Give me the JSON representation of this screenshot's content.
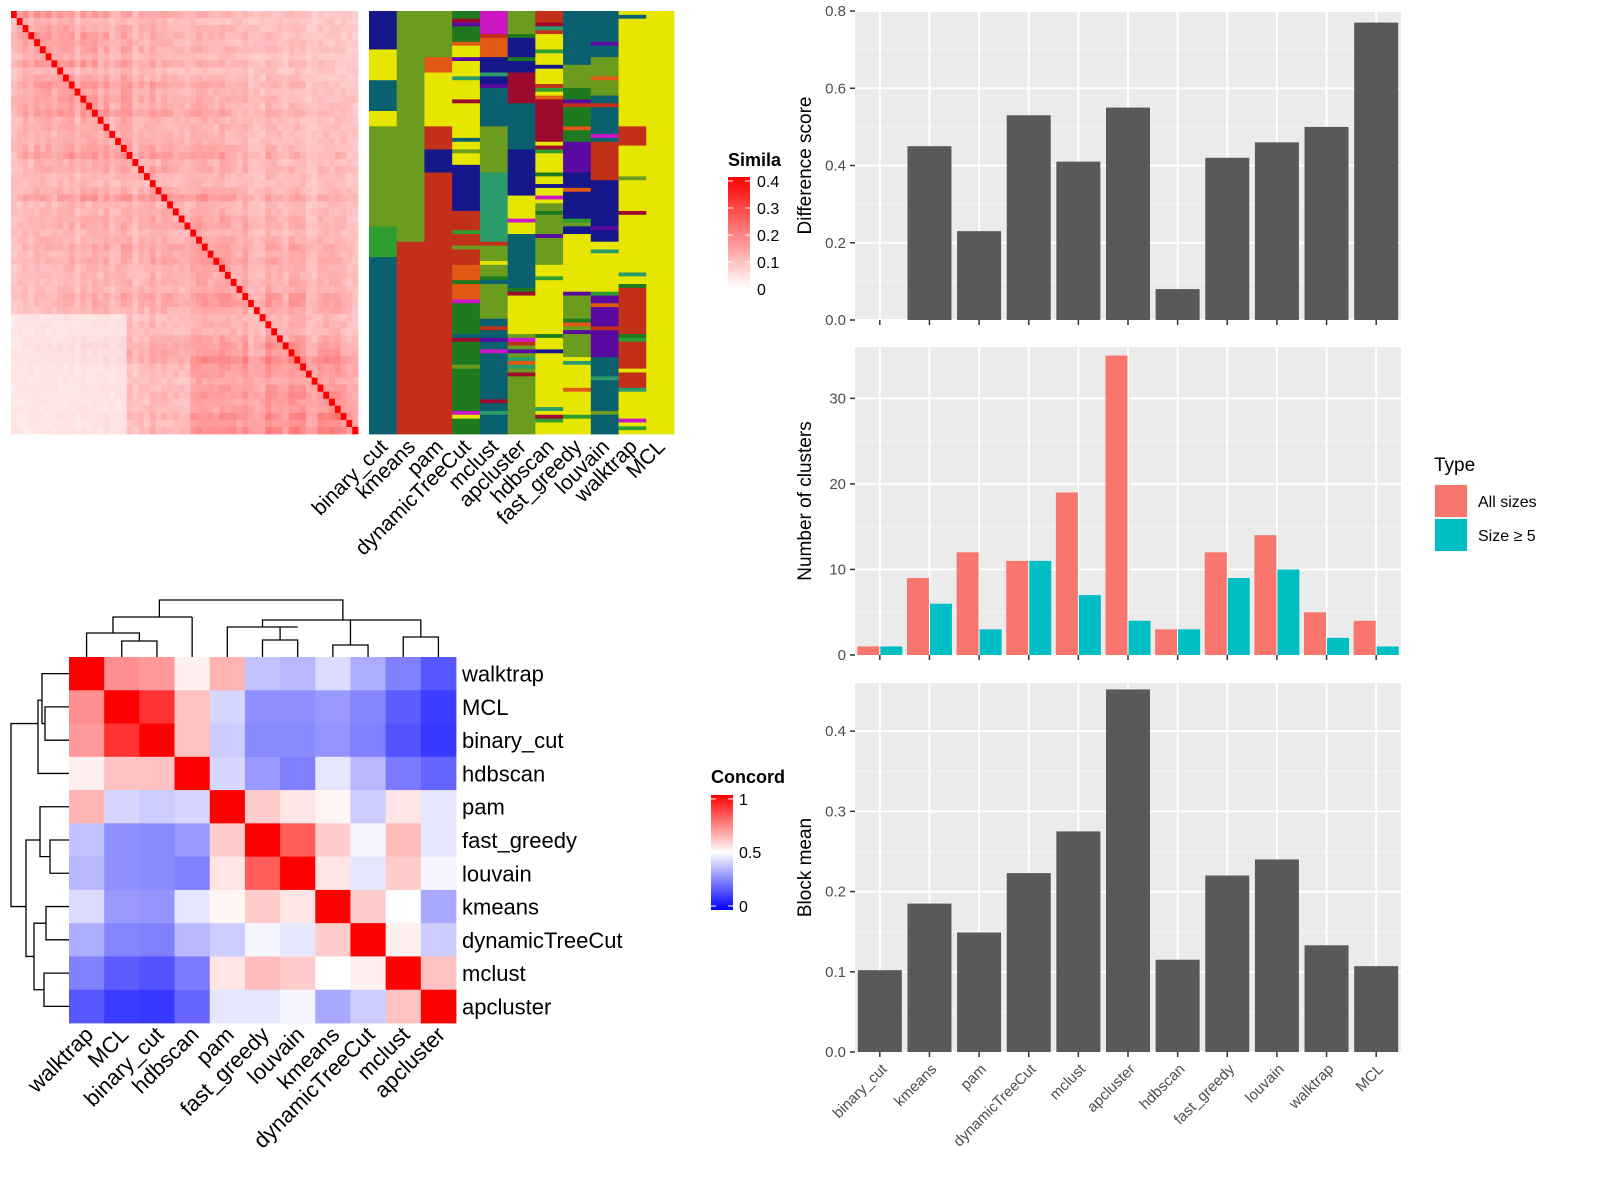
{
  "chart_data": [
    {
      "type": "heatmap",
      "panel": "cell-similarity",
      "legend": {
        "title": "Simila",
        "ticks": [
          "0.4",
          "0.3",
          "0.2",
          "0.1",
          "0"
        ],
        "colors": [
          "#ffffff",
          "#ff0000"
        ]
      },
      "diagonal_color": "#ff0000"
    },
    {
      "type": "heatmap",
      "panel": "cluster-assignments",
      "methods": [
        "binary_cut",
        "kmeans",
        "pam",
        "dynamicTreeCut",
        "mclust",
        "apcluster",
        "hdbscan",
        "fast_greedy",
        "louvain",
        "walktrap",
        "MCL"
      ],
      "palette": [
        "#e6e600",
        "#1f7a1f",
        "#6b9c1f",
        "#0b6070",
        "#c2301a",
        "#15178a",
        "#cc16c4",
        "#e05a14",
        "#9c0a2e",
        "#2a9c6b",
        "#5a0aa0",
        "#2e9e2e"
      ]
    },
    {
      "type": "bar",
      "panel": "difference-score",
      "categories": [
        "binary_cut",
        "kmeans",
        "pam",
        "dynamicTreeCut",
        "mclust",
        "apcluster",
        "hdbscan",
        "fast_greedy",
        "louvain",
        "walktrap",
        "MCL"
      ],
      "values": [
        0,
        0.45,
        0.23,
        0.53,
        0.41,
        0.55,
        0.08,
        0.42,
        0.46,
        0.5,
        0.77
      ],
      "ylabel": "Difference score",
      "ylim": [
        0,
        0.8
      ],
      "yticks": [
        "0.0",
        "0.2",
        "0.4",
        "0.6",
        "0.8"
      ],
      "bar_color": "#595959"
    },
    {
      "type": "bar",
      "panel": "number-of-clusters",
      "categories": [
        "binary_cut",
        "kmeans",
        "pam",
        "dynamicTreeCut",
        "mclust",
        "apcluster",
        "hdbscan",
        "fast_greedy",
        "louvain",
        "walktrap",
        "MCL"
      ],
      "series": [
        {
          "name": "All sizes",
          "values": [
            1,
            9,
            12,
            11,
            19,
            35,
            3,
            12,
            14,
            5,
            4
          ],
          "color": "#f8766d"
        },
        {
          "name": "Size ≥ 5",
          "values": [
            1,
            6,
            3,
            11,
            7,
            4,
            3,
            9,
            10,
            2,
            1
          ],
          "color": "#00bfc4"
        }
      ],
      "ylabel": "Number of clusters",
      "ylim": [
        0,
        36
      ],
      "yticks": [
        "0",
        "10",
        "20",
        "30"
      ],
      "legend": {
        "title": "Type",
        "position": "right"
      }
    },
    {
      "type": "bar",
      "panel": "block-mean",
      "categories": [
        "binary_cut",
        "kmeans",
        "pam",
        "dynamicTreeCut",
        "mclust",
        "apcluster",
        "hdbscan",
        "fast_greedy",
        "louvain",
        "walktrap",
        "MCL"
      ],
      "values": [
        0.102,
        0.185,
        0.149,
        0.223,
        0.275,
        0.452,
        0.115,
        0.22,
        0.24,
        0.133,
        0.107
      ],
      "ylabel": "Block mean",
      "ylim": [
        0,
        0.46
      ],
      "yticks": [
        "0.0",
        "0.1",
        "0.2",
        "0.3",
        "0.4"
      ],
      "bar_color": "#595959"
    },
    {
      "type": "heatmap",
      "panel": "concordance",
      "row_labels": [
        "walktrap",
        "MCL",
        "binary_cut",
        "hdbscan",
        "pam",
        "fast_greedy",
        "louvain",
        "kmeans",
        "dynamicTreeCut",
        "mclust",
        "apcluster"
      ],
      "col_labels": [
        "walktrap",
        "MCL",
        "binary_cut",
        "hdbscan",
        "pam",
        "fast_greedy",
        "louvain",
        "kmeans",
        "dynamicTreeCut",
        "mclust",
        "apcluster"
      ],
      "values": [
        [
          1.0,
          0.72,
          0.7,
          0.53,
          0.65,
          0.38,
          0.36,
          0.43,
          0.34,
          0.25,
          0.17
        ],
        [
          0.72,
          1.0,
          0.9,
          0.62,
          0.42,
          0.28,
          0.28,
          0.3,
          0.26,
          0.18,
          0.12
        ],
        [
          0.7,
          0.9,
          1.0,
          0.62,
          0.4,
          0.27,
          0.27,
          0.29,
          0.25,
          0.16,
          0.11
        ],
        [
          0.53,
          0.62,
          0.62,
          1.0,
          0.42,
          0.3,
          0.25,
          0.45,
          0.36,
          0.24,
          0.2
        ],
        [
          0.65,
          0.42,
          0.4,
          0.42,
          1.0,
          0.6,
          0.55,
          0.52,
          0.4,
          0.55,
          0.45
        ],
        [
          0.38,
          0.28,
          0.27,
          0.3,
          0.6,
          1.0,
          0.82,
          0.6,
          0.48,
          0.63,
          0.45
        ],
        [
          0.36,
          0.28,
          0.27,
          0.25,
          0.55,
          0.82,
          1.0,
          0.55,
          0.45,
          0.6,
          0.48
        ],
        [
          0.43,
          0.3,
          0.29,
          0.45,
          0.52,
          0.6,
          0.55,
          1.0,
          0.6,
          0.5,
          0.33
        ],
        [
          0.34,
          0.26,
          0.25,
          0.36,
          0.4,
          0.48,
          0.45,
          0.6,
          1.0,
          0.53,
          0.4
        ],
        [
          0.25,
          0.18,
          0.16,
          0.24,
          0.55,
          0.63,
          0.6,
          0.5,
          0.53,
          1.0,
          0.62
        ],
        [
          0.17,
          0.12,
          0.11,
          0.2,
          0.45,
          0.45,
          0.48,
          0.33,
          0.4,
          0.62,
          1.0
        ]
      ],
      "legend": {
        "title": "Concord",
        "ticks": [
          "1",
          "0.5",
          "0"
        ],
        "colors": [
          "#0000ff",
          "#ffffff",
          "#ff0000"
        ]
      }
    }
  ]
}
